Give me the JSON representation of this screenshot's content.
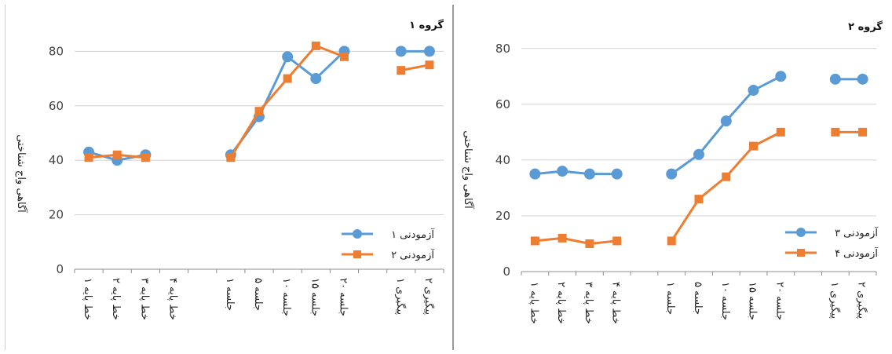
{
  "chart_data": [
    {
      "type": "line",
      "title": "گروه ۱",
      "ylabel": "آگاهی واج شناختی",
      "ylim": [
        0,
        85
      ],
      "yticks": [
        0,
        20,
        40,
        60,
        80
      ],
      "grid": true,
      "legend_position": "right",
      "categories": [
        "خط پایه ۱",
        "خط پایه ۲",
        "خط پایه ۳",
        "خط پایه ۴",
        "",
        "جلسه ۱",
        "جلسه ۵",
        "جلسه ۱۰",
        "جلسه ۱۵",
        "جلسه ۲۰",
        "",
        "پیگیری ۱",
        "پیگیری ۲"
      ],
      "series": [
        {
          "name": "آزمودنی ۱",
          "color": "#5b9bd5",
          "marker": "circle",
          "values": [
            43,
            40,
            42,
            null,
            null,
            42,
            56,
            78,
            70,
            80,
            null,
            80,
            80
          ]
        },
        {
          "name": "آزمودنی ۲",
          "color": "#ed7d31",
          "marker": "square",
          "values": [
            41,
            42,
            41,
            null,
            null,
            41,
            58,
            70,
            82,
            78,
            null,
            73,
            75
          ]
        }
      ]
    },
    {
      "type": "line",
      "title": "گروه ۲",
      "ylabel": "آگاهی واج شناختی",
      "ylim": [
        0,
        85
      ],
      "yticks": [
        0,
        20,
        40,
        60,
        80
      ],
      "grid": true,
      "legend_position": "right",
      "categories": [
        "خط پایه ۱",
        "خط پایه ۲",
        "خط پایه ۳",
        "خط پایه ۴",
        "",
        "جلسه ۱",
        "جلسه ۵",
        "جلسه ۱۰",
        "جلسه ۱۵",
        "جلسه ۲۰",
        "",
        "پیگیری ۱",
        "پیگیری ۲"
      ],
      "series": [
        {
          "name": "آزمودنی ۳",
          "color": "#5b9bd5",
          "marker": "circle",
          "values": [
            35,
            36,
            35,
            35,
            null,
            35,
            42,
            54,
            65,
            70,
            null,
            69,
            69
          ]
        },
        {
          "name": "آزمودنی ۴",
          "color": "#ed7d31",
          "marker": "square",
          "values": [
            11,
            12,
            10,
            11,
            null,
            11,
            26,
            34,
            45,
            50,
            null,
            50,
            50
          ]
        }
      ]
    }
  ]
}
